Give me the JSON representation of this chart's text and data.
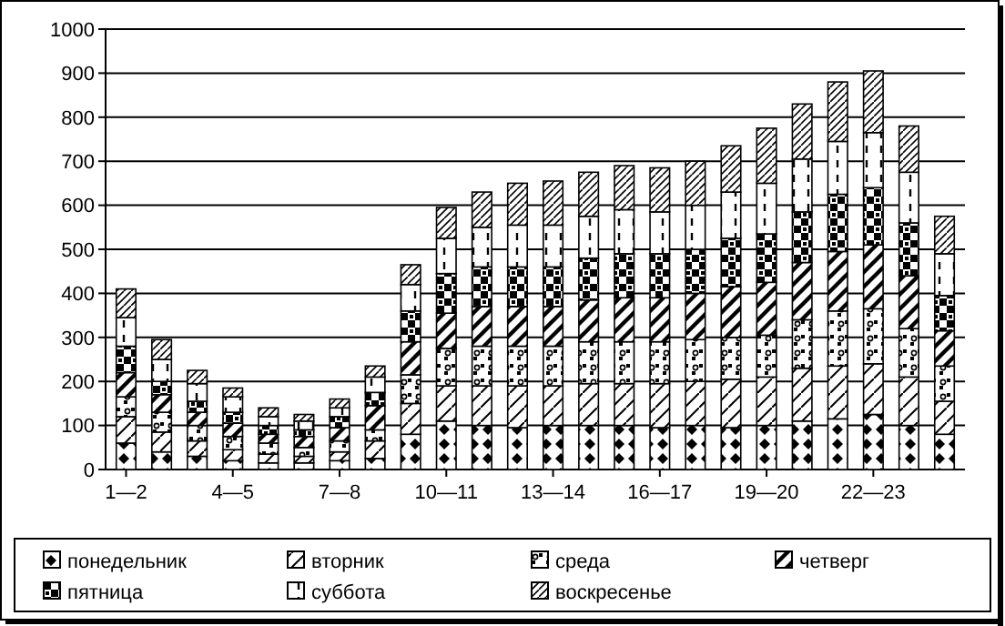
{
  "chart_data": {
    "type": "bar",
    "stacked": true,
    "categories": [
      "1—2",
      null,
      null,
      "4—5",
      null,
      null,
      "7—8",
      null,
      null,
      "10—11",
      null,
      null,
      "13—14",
      null,
      null,
      "16—17",
      null,
      null,
      "19—20",
      null,
      null,
      "22—23",
      null,
      null
    ],
    "ylim": [
      0,
      1000
    ],
    "yticks": [
      0,
      100,
      200,
      300,
      400,
      500,
      600,
      700,
      800,
      900,
      1000
    ],
    "grid": "y",
    "legend": "bottom",
    "series": [
      {
        "name": "понедельник",
        "color": "#000000",
        "values": [
          60,
          40,
          30,
          20,
          15,
          15,
          20,
          25,
          80,
          110,
          100,
          95,
          100,
          100,
          100,
          95,
          100,
          95,
          100,
          110,
          115,
          125,
          100,
          80
        ]
      },
      {
        "name": "вторник",
        "color": "#000000",
        "values": [
          60,
          45,
          35,
          25,
          20,
          15,
          20,
          40,
          70,
          80,
          90,
          95,
          90,
          95,
          95,
          100,
          100,
          110,
          110,
          120,
          120,
          115,
          110,
          75
        ]
      },
      {
        "name": "среда",
        "color": "#000000",
        "values": [
          45,
          45,
          35,
          30,
          25,
          20,
          25,
          25,
          65,
          85,
          90,
          90,
          90,
          95,
          95,
          95,
          95,
          95,
          95,
          110,
          125,
          125,
          110,
          80
        ]
      },
      {
        "name": "четверг",
        "color": "#000000",
        "values": [
          55,
          40,
          30,
          30,
          20,
          25,
          30,
          55,
          75,
          80,
          90,
          90,
          90,
          95,
          100,
          100,
          105,
          115,
          120,
          130,
          135,
          145,
          120,
          80
        ]
      },
      {
        "name": "пятница",
        "color": "#000000",
        "values": [
          60,
          30,
          25,
          25,
          20,
          15,
          25,
          30,
          70,
          90,
          90,
          90,
          90,
          95,
          100,
          100,
          100,
          110,
          110,
          115,
          130,
          130,
          120,
          80
        ]
      },
      {
        "name": "суббота",
        "color": "#000000",
        "values": [
          65,
          50,
          40,
          35,
          20,
          20,
          20,
          35,
          60,
          80,
          90,
          95,
          95,
          95,
          100,
          95,
          100,
          105,
          115,
          120,
          120,
          125,
          115,
          95
        ]
      },
      {
        "name": "воскресенье",
        "color": "#000000",
        "values": [
          65,
          45,
          30,
          20,
          20,
          15,
          20,
          25,
          45,
          70,
          80,
          95,
          100,
          100,
          100,
          100,
          100,
          105,
          125,
          125,
          135,
          140,
          105,
          85
        ]
      }
    ]
  }
}
